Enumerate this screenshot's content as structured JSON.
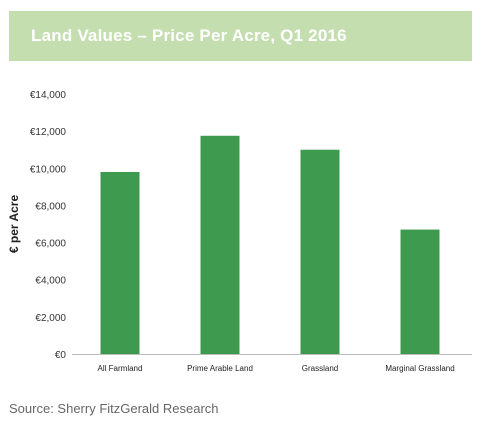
{
  "header": {
    "title": "Land Values – Price Per Acre, Q1 2016"
  },
  "footer": {
    "source": "Source: Sherry FitzGerald Research"
  },
  "colors": {
    "title_bg": "#c5deb0",
    "bar": "#3d9a4f",
    "axis": "#bbbbbb"
  },
  "chart_data": {
    "type": "bar",
    "title": "Land Values – Price Per Acre, Q1 2016",
    "categories": [
      "All Farmland",
      "Prime Arable Land",
      "Grassland",
      "Marginal Grassland"
    ],
    "values": [
      9800,
      11750,
      11000,
      6700
    ],
    "xlabel": "",
    "ylabel": "€ per Acre",
    "ylim": [
      0,
      14000
    ],
    "yticks": [
      0,
      2000,
      4000,
      6000,
      8000,
      10000,
      12000,
      14000
    ],
    "ytick_labels": [
      "€0",
      "€2,000",
      "€4,000",
      "€6,000",
      "€8,000",
      "€10,000",
      "€12,000",
      "€14,000"
    ],
    "grid": false,
    "legend": "none"
  }
}
